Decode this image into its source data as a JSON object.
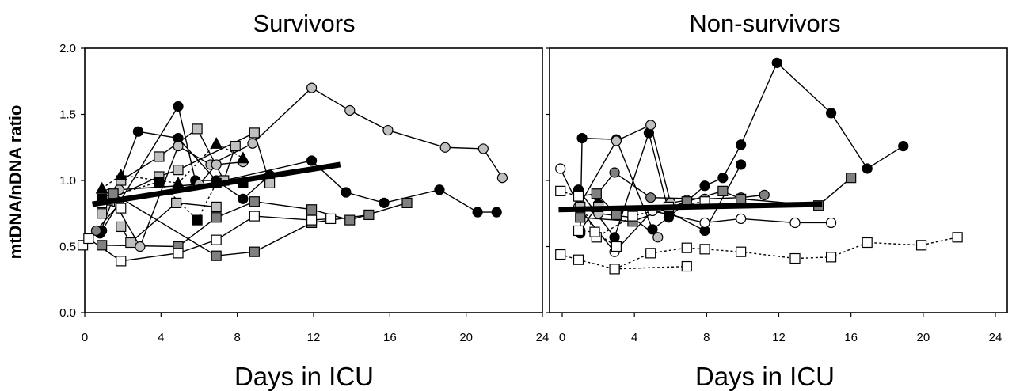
{
  "chart_data": [
    {
      "type": "line",
      "title": "Survivors",
      "xlabel": "Days in ICU",
      "ylabel": "mtDNA/nDNA ratio",
      "xlim": [
        0,
        24
      ],
      "ylim": [
        0.0,
        2.0
      ],
      "xticks": [
        "0",
        "4",
        "8",
        "12",
        "16",
        "20",
        "24"
      ],
      "yticks": [
        "0.0",
        "0.5",
        "1.0",
        "1.5",
        "2.0"
      ],
      "grid": false,
      "legend": "none",
      "series": [
        {
          "marker": "circle",
          "fill": "#000000",
          "dash": "solid",
          "points": [
            [
              0.8,
              0.6
            ],
            [
              2.8,
              1.37
            ],
            [
              4.9,
              1.32
            ],
            [
              6.9,
              1.0
            ],
            [
              8.3,
              0.86
            ],
            [
              9.7,
              1.04
            ]
          ]
        },
        {
          "marker": "circle",
          "fill": "#000000",
          "dash": "solid",
          "points": [
            [
              0.9,
              0.62
            ],
            [
              4.9,
              1.56
            ],
            [
              5.8,
              1.0
            ],
            [
              7.3,
              1.0
            ],
            [
              11.9,
              1.15
            ],
            [
              13.7,
              0.91
            ],
            [
              15.7,
              0.83
            ],
            [
              18.6,
              0.93
            ],
            [
              20.6,
              0.76
            ],
            [
              21.6,
              0.76
            ]
          ]
        },
        {
          "marker": "circle",
          "fill": "#c0c0c0",
          "dash": "solid",
          "points": [
            [
              1.3,
              0.9
            ],
            [
              2.9,
              0.5
            ],
            [
              4.9,
              1.26
            ],
            [
              6.6,
              1.12
            ],
            [
              8.8,
              1.28
            ],
            [
              11.9,
              1.7
            ],
            [
              13.9,
              1.53
            ],
            [
              15.9,
              1.38
            ],
            [
              18.9,
              1.25
            ],
            [
              20.9,
              1.24
            ],
            [
              21.9,
              1.02
            ]
          ]
        },
        {
          "marker": "circle",
          "fill": "#c0c0c0",
          "dash": "solid",
          "points": [
            [
              1.8,
              0.93
            ],
            [
              6.0,
              0.97
            ],
            [
              6.9,
              1.12
            ],
            [
              8.3,
              1.14
            ]
          ]
        },
        {
          "marker": "circle",
          "fill": "#808080",
          "dash": "solid",
          "points": [
            [
              0.6,
              0.62
            ],
            [
              1.8,
              0.82
            ]
          ]
        },
        {
          "marker": "square",
          "fill": "#c0c0c0",
          "dash": "solid",
          "points": [
            [
              0.9,
              0.75
            ],
            [
              1.9,
              1.0
            ],
            [
              3.9,
              1.18
            ],
            [
              5.9,
              1.39
            ],
            [
              7.3,
              1.0
            ],
            [
              7.9,
              1.26
            ]
          ]
        },
        {
          "marker": "square",
          "fill": "#c0c0c0",
          "dash": "solid",
          "points": [
            [
              1.2,
              0.85
            ],
            [
              3.9,
              1.03
            ],
            [
              4.9,
              1.08
            ],
            [
              8.9,
              1.36
            ],
            [
              9.7,
              0.98
            ]
          ]
        },
        {
          "marker": "square",
          "fill": "#c0c0c0",
          "dash": "solid",
          "points": [
            [
              1.9,
              0.65
            ],
            [
              2.4,
              0.53
            ],
            [
              4.8,
              0.83
            ],
            [
              6.9,
              0.8
            ]
          ]
        },
        {
          "marker": "square",
          "fill": "#808080",
          "dash": "solid",
          "points": [
            [
              0.9,
              0.51
            ],
            [
              4.9,
              0.5
            ],
            [
              6.9,
              0.72
            ],
            [
              8.9,
              0.84
            ],
            [
              11.9,
              0.78
            ],
            [
              13.9,
              0.7
            ],
            [
              16.9,
              0.83
            ]
          ]
        },
        {
          "marker": "square",
          "fill": "#808080",
          "dash": "solid",
          "points": [
            [
              1.5,
              0.9
            ],
            [
              6.9,
              0.43
            ],
            [
              8.9,
              0.46
            ],
            [
              11.9,
              0.68
            ],
            [
              14.9,
              0.74
            ]
          ]
        },
        {
          "marker": "square",
          "fill": "#ffffff",
          "dash": "solid",
          "points": [
            [
              -0.1,
              0.51
            ],
            [
              0.2,
              0.56
            ],
            [
              1.9,
              0.39
            ],
            [
              4.9,
              0.45
            ],
            [
              6.9,
              0.55
            ],
            [
              8.9,
              0.73
            ],
            [
              11.9,
              0.7
            ],
            [
              12.9,
              0.71
            ]
          ]
        },
        {
          "marker": "square",
          "fill": "#ffffff",
          "dash": "solid",
          "points": [
            [
              0.9,
              0.83
            ],
            [
              1.9,
              0.79
            ]
          ]
        },
        {
          "marker": "square",
          "fill": "#000000",
          "dash": "dotted",
          "points": [
            [
              0.9,
              0.86
            ],
            [
              3.9,
              0.99
            ],
            [
              5.9,
              0.7
            ],
            [
              6.9,
              0.98
            ],
            [
              8.3,
              0.98
            ]
          ]
        },
        {
          "marker": "triangle",
          "fill": "#000000",
          "dash": "dotted",
          "points": [
            [
              0.9,
              0.94
            ],
            [
              1.9,
              1.04
            ],
            [
              4.9,
              0.98
            ],
            [
              6.9,
              1.28
            ],
            [
              8.3,
              1.17
            ]
          ]
        }
      ],
      "trend": {
        "x": [
          0.4,
          13.4
        ],
        "y": [
          0.82,
          1.12
        ]
      }
    },
    {
      "type": "line",
      "title": "Non-survivors",
      "xlabel": "Days in ICU",
      "ylabel": "",
      "xlim": [
        0,
        24
      ],
      "ylim": [
        0.0,
        2.0
      ],
      "xticks": [
        "0",
        "4",
        "8",
        "12",
        "16",
        "20",
        "24"
      ],
      "yticks": [
        "0.0",
        "0.5",
        "1.0",
        "1.5",
        "2.0"
      ],
      "grid": false,
      "legend": "none",
      "series": [
        {
          "marker": "circle",
          "fill": "#000000",
          "dash": "solid",
          "points": [
            [
              1.0,
              0.6
            ],
            [
              1.1,
              1.32
            ],
            [
              3.0,
              1.31
            ],
            [
              5.0,
              0.63
            ],
            [
              5.9,
              0.72
            ],
            [
              7.9,
              0.96
            ],
            [
              8.9,
              1.02
            ],
            [
              9.9,
              1.27
            ],
            [
              11.9,
              1.89
            ],
            [
              14.9,
              1.51
            ],
            [
              16.9,
              1.09
            ],
            [
              18.9,
              1.26
            ]
          ]
        },
        {
          "marker": "circle",
          "fill": "#000000",
          "dash": "solid",
          "points": [
            [
              0.9,
              0.93
            ],
            [
              2.9,
              0.57
            ],
            [
              4.8,
              1.36
            ],
            [
              5.9,
              0.76
            ],
            [
              7.9,
              0.62
            ],
            [
              9.9,
              1.12
            ]
          ]
        },
        {
          "marker": "circle",
          "fill": "#000000",
          "dash": "solid",
          "points": [
            [
              1.0,
              0.62
            ],
            [
              2.0,
              0.82
            ]
          ]
        },
        {
          "marker": "circle",
          "fill": "#808080",
          "dash": "solid",
          "points": [
            [
              1.9,
              0.89
            ],
            [
              2.9,
              1.06
            ],
            [
              4.9,
              0.87
            ],
            [
              7.9,
              0.86
            ],
            [
              9.9,
              0.87
            ],
            [
              11.2,
              0.89
            ]
          ]
        },
        {
          "marker": "circle",
          "fill": "#c0c0c0",
          "dash": "solid",
          "points": [
            [
              0.9,
              0.8
            ],
            [
              3.0,
              1.3
            ],
            [
              4.9,
              1.42
            ],
            [
              6.0,
              0.83
            ],
            [
              6.9,
              0.85
            ]
          ]
        },
        {
          "marker": "circle",
          "fill": "#c0c0c0",
          "dash": "solid",
          "points": [
            [
              1.0,
              0.79
            ],
            [
              2.0,
              0.75
            ],
            [
              3.9,
              0.72
            ],
            [
              5.3,
              0.57
            ]
          ]
        },
        {
          "marker": "circle",
          "fill": "#ffffff",
          "dash": "solid",
          "points": [
            [
              -0.1,
              1.09
            ],
            [
              1.0,
              0.78
            ],
            [
              2.9,
              0.46
            ],
            [
              5.0,
              0.77
            ],
            [
              7.9,
              0.68
            ],
            [
              9.9,
              0.71
            ],
            [
              12.9,
              0.68
            ],
            [
              14.9,
              0.68
            ]
          ]
        },
        {
          "marker": "square",
          "fill": "#808080",
          "dash": "solid",
          "points": [
            [
              1.0,
              0.72
            ],
            [
              3.9,
              0.69
            ],
            [
              6.9,
              0.84
            ],
            [
              8.9,
              0.92
            ],
            [
              9.9,
              0.86
            ],
            [
              14.2,
              0.81
            ],
            [
              16.0,
              1.02
            ]
          ]
        },
        {
          "marker": "square",
          "fill": "#808080",
          "dash": "solid",
          "points": [
            [
              0.9,
              0.88
            ],
            [
              1.9,
              0.9
            ],
            [
              3.0,
              0.74
            ]
          ]
        },
        {
          "marker": "square",
          "fill": "#c0c0c0",
          "dash": "solid",
          "points": [
            [
              1.0,
              0.8
            ],
            [
              2.0,
              0.8
            ]
          ]
        },
        {
          "marker": "square",
          "fill": "#ffffff",
          "dash": "dotted",
          "points": [
            [
              -0.1,
              0.92
            ],
            [
              0.9,
              0.88
            ],
            [
              1.9,
              0.57
            ],
            [
              3.9,
              0.73
            ],
            [
              5.9,
              0.8
            ],
            [
              7.9,
              0.84
            ]
          ]
        },
        {
          "marker": "square",
          "fill": "#ffffff",
          "dash": "dotted",
          "points": [
            [
              0.9,
              0.62
            ],
            [
              1.8,
              0.61
            ],
            [
              3.0,
              0.5
            ]
          ]
        },
        {
          "marker": "square",
          "fill": "#ffffff",
          "dash": "dotted",
          "points": [
            [
              -0.1,
              0.44
            ],
            [
              0.9,
              0.4
            ],
            [
              2.9,
              0.33
            ],
            [
              4.9,
              0.45
            ],
            [
              6.9,
              0.49
            ],
            [
              7.9,
              0.48
            ],
            [
              9.9,
              0.46
            ],
            [
              12.9,
              0.41
            ],
            [
              14.9,
              0.42
            ],
            [
              16.9,
              0.53
            ],
            [
              19.9,
              0.51
            ],
            [
              21.9,
              0.57
            ]
          ]
        },
        {
          "marker": "square",
          "fill": "#ffffff",
          "dash": "dotted",
          "points": [
            [
              2.9,
              0.33
            ],
            [
              6.9,
              0.35
            ]
          ]
        }
      ],
      "trend": {
        "x": [
          -0.2,
          14.4
        ],
        "y": [
          0.78,
          0.82
        ]
      }
    }
  ]
}
